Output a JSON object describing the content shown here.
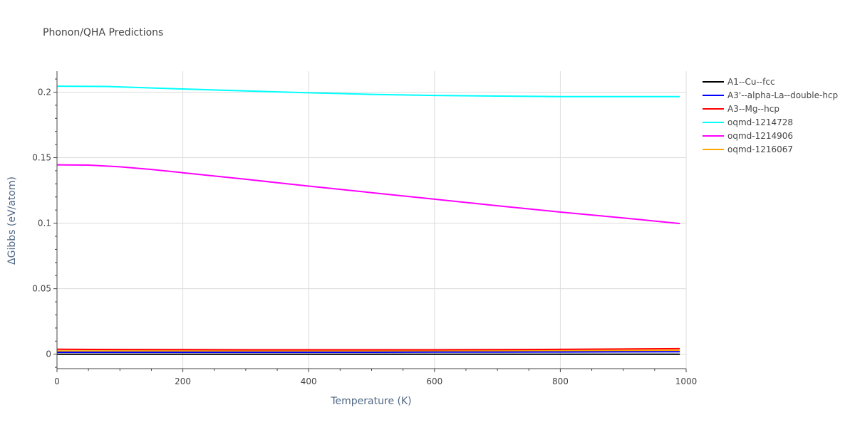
{
  "chart_data": {
    "type": "line",
    "title": "Phonon/QHA Predictions",
    "xlabel": "Temperature (K)",
    "ylabel": "ΔGibbs (eV/atom)",
    "xlim": [
      0,
      1000
    ],
    "ylim": [
      -0.011,
      0.216
    ],
    "xticks": [
      0,
      200,
      400,
      600,
      800,
      1000
    ],
    "xtick_labels": [
      "0",
      "200",
      "400",
      "600",
      "800",
      "1000"
    ],
    "yticks": [
      0,
      0.05,
      0.1,
      0.15,
      0.2
    ],
    "ytick_labels": [
      "0",
      "0.05",
      "0.1",
      "0.15",
      "0.2"
    ],
    "grid": true,
    "legend_position": "right",
    "series": [
      {
        "name": "A1--Cu--fcc",
        "color": "#000000",
        "x": [
          0,
          100,
          200,
          300,
          400,
          500,
          600,
          700,
          800,
          900,
          990
        ],
        "y": [
          0,
          0,
          0,
          0,
          0,
          0,
          0,
          0,
          0,
          0,
          0
        ]
      },
      {
        "name": "A3'--alpha-La--double-hcp",
        "color": "#0000ff",
        "x": [
          0,
          100,
          200,
          300,
          400,
          500,
          600,
          700,
          800,
          900,
          990
        ],
        "y": [
          0.0015,
          0.0015,
          0.0015,
          0.0015,
          0.0015,
          0.0015,
          0.0016,
          0.0016,
          0.0017,
          0.0018,
          0.0019
        ]
      },
      {
        "name": "A3--Mg--hcp",
        "color": "#ff0000",
        "x": [
          0,
          100,
          200,
          300,
          400,
          500,
          600,
          700,
          800,
          900,
          990
        ],
        "y": [
          0.0038,
          0.0036,
          0.0035,
          0.0034,
          0.0034,
          0.0034,
          0.0034,
          0.0035,
          0.0037,
          0.004,
          0.0043
        ]
      },
      {
        "name": "oqmd-1214728",
        "color": "#00ffff",
        "x": [
          0,
          80,
          100,
          200,
          300,
          400,
          500,
          600,
          700,
          800,
          900,
          990
        ],
        "y": [
          0.2045,
          0.2043,
          0.204,
          0.2024,
          0.2009,
          0.1995,
          0.1983,
          0.1975,
          0.197,
          0.1966,
          0.1966,
          0.1966
        ]
      },
      {
        "name": "oqmd-1214906",
        "color": "#ff00ff",
        "x": [
          0,
          50,
          100,
          150,
          200,
          300,
          400,
          500,
          600,
          700,
          800,
          900,
          990
        ],
        "y": [
          0.1445,
          0.1443,
          0.143,
          0.141,
          0.1385,
          0.1335,
          0.1283,
          0.1233,
          0.1183,
          0.1133,
          0.1085,
          0.104,
          0.0997
        ]
      },
      {
        "name": "oqmd-1216067",
        "color": "#ffa500",
        "x": [
          0,
          100,
          200,
          300,
          400,
          500,
          600,
          700,
          800,
          900,
          990
        ],
        "y": [
          0.0025,
          0.0025,
          0.0025,
          0.0025,
          0.0025,
          0.0025,
          0.0025,
          0.0026,
          0.0027,
          0.0028,
          0.003
        ]
      }
    ]
  }
}
